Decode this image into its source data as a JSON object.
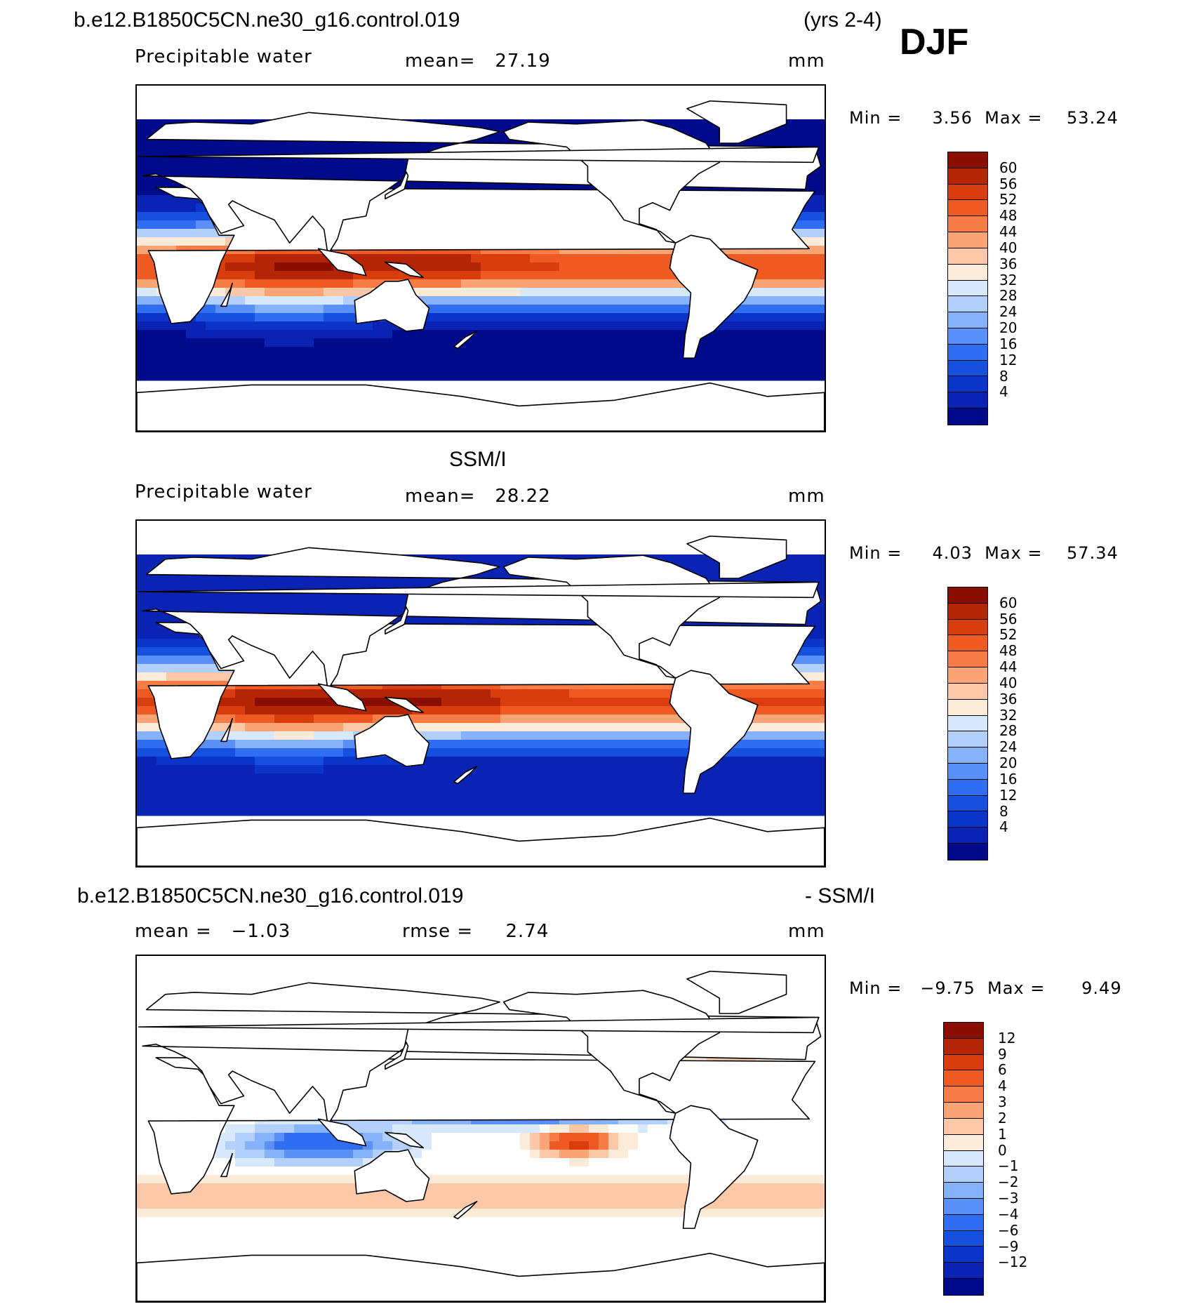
{
  "header": {
    "case_name": "b.e12.B1850C5CN.ne30_g16.control.019",
    "years": "(yrs 2-4)",
    "season": "DJF"
  },
  "palette_main": [
    "#000b8c",
    "#0a23b3",
    "#0b35c8",
    "#1650df",
    "#2f6ef1",
    "#5a90f8",
    "#86b2fb",
    "#b3cffd",
    "#d8e8fd",
    "#fdebd9",
    "#fdc8a8",
    "#fba576",
    "#f87c45",
    "#ef5a22",
    "#d93d0e",
    "#b42506",
    "#8a0e00"
  ],
  "panels": [
    {
      "id": "model",
      "title": "",
      "variable": "Precipitable water",
      "stat_text": "mean=   27.19",
      "units": "mm",
      "minmax": "Min =     3.56  Max =    53.24",
      "colorbar_labels": [
        "60",
        "56",
        "52",
        "48",
        "44",
        "40",
        "36",
        "32",
        "28",
        "24",
        "20",
        "16",
        "12",
        "8",
        "4"
      ]
    },
    {
      "id": "obs",
      "title": "SSM/I",
      "variable": "Precipitable water",
      "stat_text": "mean=   28.22",
      "units": "mm",
      "minmax": "Min =     4.03  Max =    57.34",
      "colorbar_labels": [
        "60",
        "56",
        "52",
        "48",
        "44",
        "40",
        "36",
        "32",
        "28",
        "24",
        "20",
        "16",
        "12",
        "8",
        "4"
      ]
    },
    {
      "id": "diff",
      "title_left": "b.e12.B1850C5CN.ne30_g16.control.019",
      "title_right": "- SSM/I",
      "stat_mean": "mean =   −1.03",
      "stat_rmse": "rmse =     2.74",
      "units": "mm",
      "minmax": "Min =   −9.75  Max =      9.49",
      "colorbar_labels": [
        "12",
        "9",
        "6",
        "4",
        "3",
        "2",
        "1",
        "0",
        "−1",
        "−2",
        "−3",
        "−4",
        "−6",
        "−9",
        "−12"
      ]
    }
  ]
}
